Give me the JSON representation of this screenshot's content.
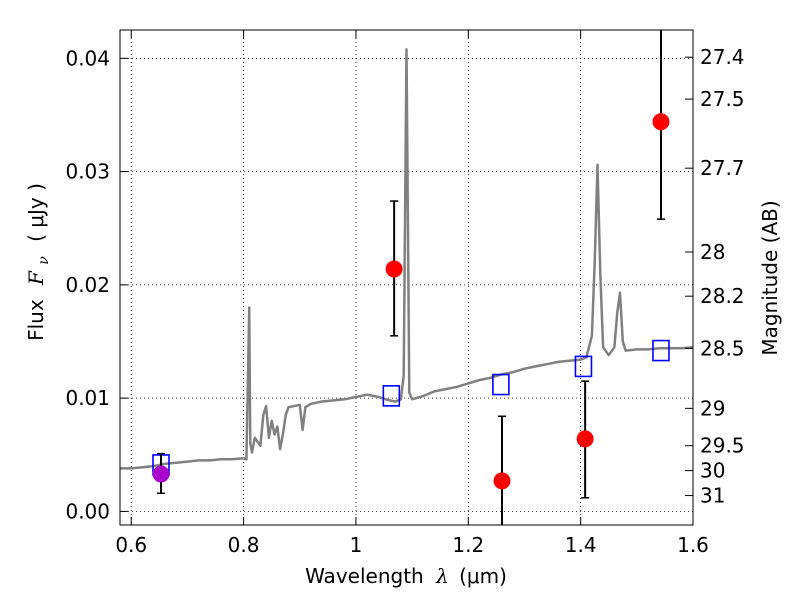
{
  "chart_data": {
    "type": "scatter",
    "xlabel_prefix": "Wavelength",
    "xlabel_symbol": "λ",
    "xlabel_unit": "(μm)",
    "ylabel_prefix": "Flux",
    "ylabel_symbol": "F",
    "ylabel_subscript": "ν",
    "ylabel_unit": "( μJy )",
    "y2label": "Magnitude (AB)",
    "xlim": [
      0.58,
      1.6
    ],
    "ylim": [
      -0.0012,
      0.0425
    ],
    "grid": true,
    "x_ticks": [
      {
        "v": 0.6,
        "label": "0.6"
      },
      {
        "v": 0.8,
        "label": "0.8"
      },
      {
        "v": 1.0,
        "label": "1"
      },
      {
        "v": 1.2,
        "label": "1.2"
      },
      {
        "v": 1.4,
        "label": "1.4"
      },
      {
        "v": 1.6,
        "label": "1.6"
      }
    ],
    "y_ticks": [
      {
        "v": 0.0,
        "label": "0.00"
      },
      {
        "v": 0.01,
        "label": "0.01"
      },
      {
        "v": 0.02,
        "label": "0.02"
      },
      {
        "v": 0.03,
        "label": "0.03"
      },
      {
        "v": 0.04,
        "label": "0.04"
      }
    ],
    "mag_ticks": [
      {
        "v": 0.0401,
        "label": "27.4"
      },
      {
        "v": 0.0364,
        "label": "27.5"
      },
      {
        "v": 0.0303,
        "label": "27.7"
      },
      {
        "v": 0.0229,
        "label": "28"
      },
      {
        "v": 0.019,
        "label": "28.2"
      },
      {
        "v": 0.0144,
        "label": "28.5"
      },
      {
        "v": 0.0091,
        "label": "29"
      },
      {
        "v": 0.0058,
        "label": "29.5"
      },
      {
        "v": 0.0036,
        "label": "30"
      },
      {
        "v": 0.0014,
        "label": "31"
      }
    ],
    "series": [
      {
        "name": "model spectrum",
        "kind": "line",
        "color": "#808080",
        "x": [
          0.58,
          0.6,
          0.62,
          0.64,
          0.66,
          0.68,
          0.7,
          0.72,
          0.74,
          0.76,
          0.78,
          0.8,
          0.805,
          0.808,
          0.81,
          0.812,
          0.815,
          0.82,
          0.83,
          0.835,
          0.84,
          0.845,
          0.85,
          0.855,
          0.86,
          0.865,
          0.87,
          0.875,
          0.88,
          0.9,
          0.905,
          0.91,
          0.92,
          0.94,
          0.96,
          0.98,
          1.0,
          1.02,
          1.04,
          1.06,
          1.07,
          1.08,
          1.085,
          1.09,
          1.095,
          1.1,
          1.12,
          1.14,
          1.16,
          1.18,
          1.2,
          1.22,
          1.24,
          1.26,
          1.28,
          1.3,
          1.32,
          1.34,
          1.36,
          1.38,
          1.4,
          1.41,
          1.42,
          1.425,
          1.43,
          1.435,
          1.44,
          1.45,
          1.46,
          1.465,
          1.47,
          1.475,
          1.48,
          1.5,
          1.52,
          1.54,
          1.56,
          1.58,
          1.6
        ],
        "y": [
          0.0038,
          0.0038,
          0.0039,
          0.004,
          0.0042,
          0.0043,
          0.0044,
          0.0045,
          0.0045,
          0.0046,
          0.0046,
          0.0047,
          0.0046,
          0.0125,
          0.018,
          0.006,
          0.0052,
          0.0065,
          0.0058,
          0.0085,
          0.0093,
          0.0065,
          0.008,
          0.0068,
          0.0075,
          0.0055,
          0.0068,
          0.0085,
          0.0092,
          0.0094,
          0.0072,
          0.0092,
          0.0095,
          0.0097,
          0.0098,
          0.0099,
          0.0101,
          0.0103,
          0.0101,
          0.0098,
          0.0097,
          0.0099,
          0.012,
          0.0408,
          0.0105,
          0.0099,
          0.0102,
          0.0106,
          0.0108,
          0.011,
          0.0113,
          0.0116,
          0.0118,
          0.0121,
          0.0123,
          0.0126,
          0.0128,
          0.013,
          0.0132,
          0.0133,
          0.0134,
          0.0136,
          0.0155,
          0.022,
          0.0306,
          0.021,
          0.0145,
          0.0138,
          0.0145,
          0.0175,
          0.0193,
          0.015,
          0.0142,
          0.0143,
          0.0143,
          0.0144,
          0.0144,
          0.0144,
          0.0145
        ]
      },
      {
        "name": "model band fluxes",
        "kind": "open-square",
        "color": "#0000ff",
        "x": [
          0.653,
          1.063,
          1.258,
          1.405,
          1.543
        ],
        "y": [
          0.0041,
          0.0102,
          0.0112,
          0.0128,
          0.0142
        ]
      },
      {
        "name": "observed photometry",
        "kind": "filled-circle-errorbar",
        "color": "#ff0000",
        "x": [
          1.068,
          1.26,
          1.408,
          1.543
        ],
        "y": [
          0.0214,
          0.0027,
          0.0064,
          0.0344
        ],
        "yerr_low": [
          0.0059,
          0.0057,
          0.0052,
          0.0086
        ],
        "yerr_high": [
          0.006,
          0.0057,
          0.0051,
          0.0086
        ]
      },
      {
        "name": "observed photometry (visible band)",
        "kind": "filled-circle-errorbar",
        "color": "#aa00cc",
        "x": [
          0.653
        ],
        "y": [
          0.0033
        ],
        "yerr_low": [
          0.0017
        ],
        "yerr_high": [
          0.0018
        ]
      }
    ]
  }
}
